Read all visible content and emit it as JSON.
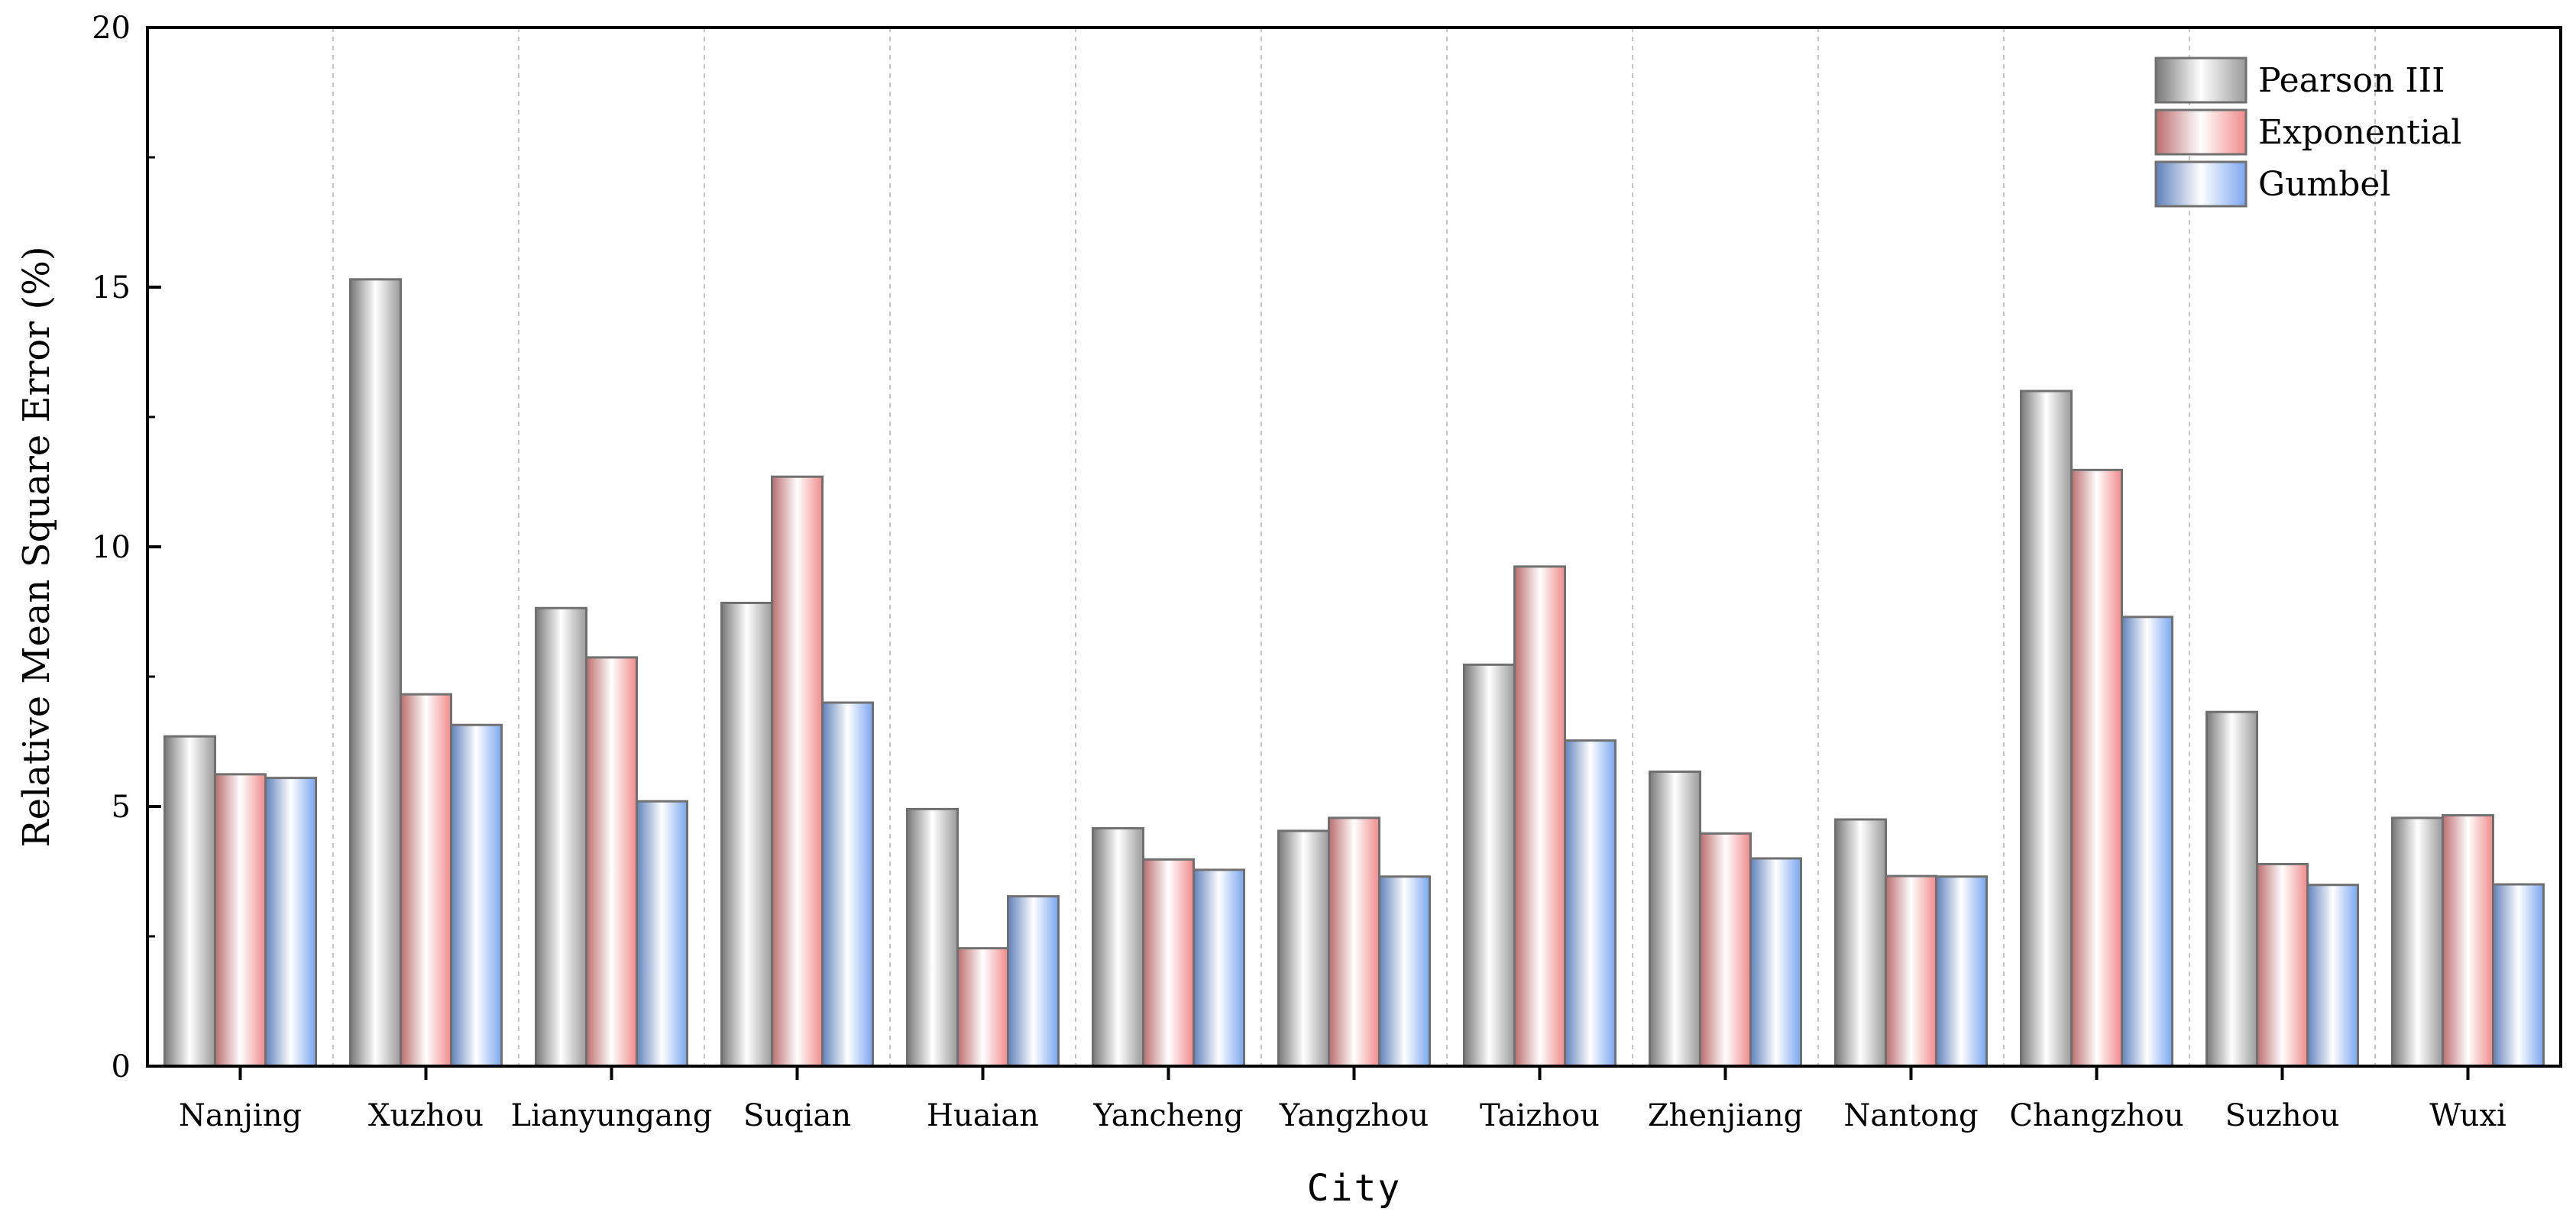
{
  "chart_data": {
    "type": "bar",
    "xlabel": "City",
    "ylabel": "Relative Mean Square Error (%)",
    "ylim": [
      0,
      20
    ],
    "yticks": [
      "0",
      "5",
      "10",
      "15",
      "20"
    ],
    "grid": "vertical dashed separators between categories",
    "legend_position": "top-right",
    "categories": [
      "Nanjing",
      "Xuzhou",
      "Lianyungang",
      "Suqian",
      "Huaian",
      "Yancheng",
      "Yangzhou",
      "Taizhou",
      "Zhenjiang",
      "Nantong",
      "Changzhou",
      "Suzhou",
      "Wuxi"
    ],
    "series": [
      {
        "name": "Pearson III",
        "color": "#9a9a9a",
        "values": [
          6.35,
          15.15,
          8.82,
          8.92,
          4.95,
          4.58,
          4.53,
          7.73,
          5.67,
          4.75,
          13.0,
          6.82,
          4.78
        ]
      },
      {
        "name": "Exponential",
        "color": "#f08a8a",
        "values": [
          5.62,
          7.16,
          7.87,
          11.35,
          2.27,
          3.98,
          4.78,
          9.62,
          4.48,
          3.66,
          11.48,
          3.89,
          4.83
        ]
      },
      {
        "name": "Gumbel",
        "color": "#7aa6f0",
        "values": [
          5.55,
          6.57,
          5.1,
          7.0,
          3.27,
          3.78,
          3.65,
          6.27,
          4.0,
          3.65,
          8.65,
          3.49,
          3.5
        ]
      }
    ]
  }
}
